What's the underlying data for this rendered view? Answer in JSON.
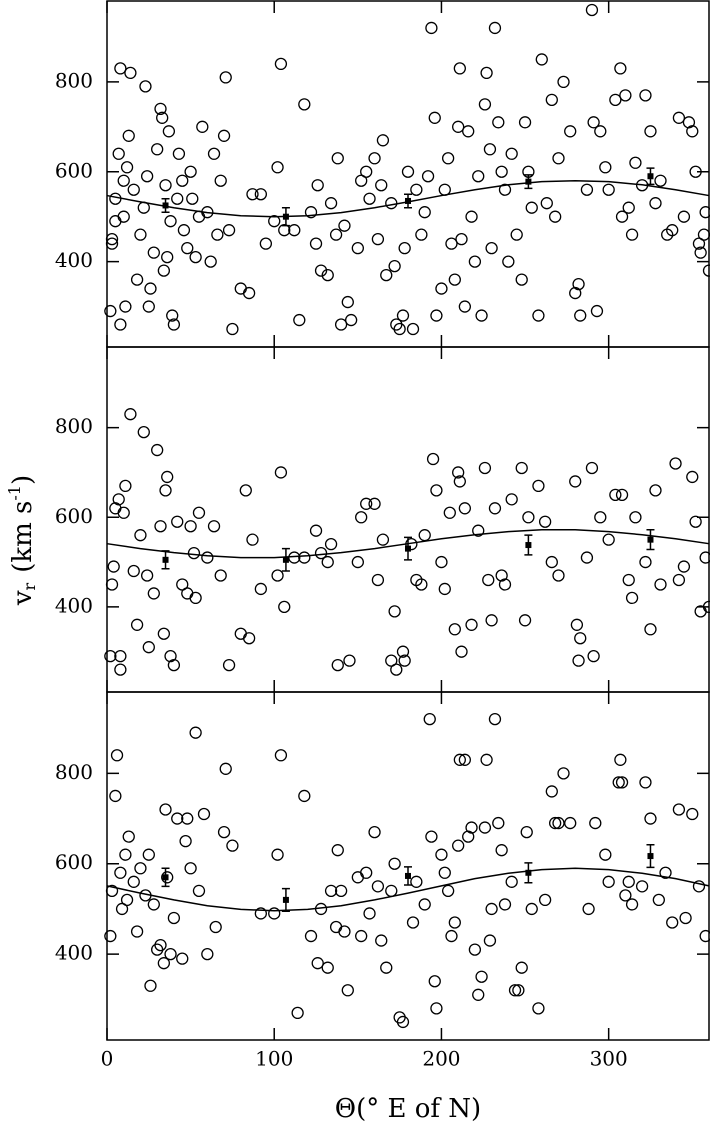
{
  "chart_data": [
    {
      "type": "scatter",
      "xlim": [
        0,
        360
      ],
      "xticks": [
        0,
        100,
        200,
        300
      ],
      "ylim": [
        210,
        980
      ],
      "yticks": [
        400,
        600,
        800
      ],
      "points": {
        "x": [
          2,
          3,
          3,
          5,
          5,
          7,
          8,
          8,
          10,
          10,
          11,
          12,
          13,
          14,
          16,
          18,
          20,
          22,
          23,
          24,
          25,
          26,
          28,
          30,
          32,
          33,
          34,
          35,
          36,
          37,
          38,
          39,
          40,
          42,
          43,
          45,
          46,
          48,
          50,
          51,
          53,
          55,
          57,
          60,
          62,
          64,
          66,
          68,
          70,
          71,
          73,
          75,
          80,
          85,
          87,
          92,
          95,
          100,
          102,
          104,
          106,
          112,
          115,
          118,
          122,
          125,
          126,
          128,
          132,
          134,
          137,
          138,
          140,
          142,
          144,
          146,
          150,
          152,
          155,
          157,
          160,
          162,
          164,
          165,
          167,
          170,
          172,
          173,
          175,
          177,
          178,
          180,
          183,
          185,
          188,
          190,
          192,
          194,
          196,
          197,
          200,
          202,
          204,
          206,
          208,
          210,
          211,
          212,
          214,
          216,
          218,
          220,
          222,
          224,
          226,
          227,
          229,
          230,
          232,
          234,
          236,
          238,
          240,
          242,
          245,
          248,
          250,
          252,
          254,
          258,
          260,
          263,
          266,
          268,
          270,
          273,
          277,
          280,
          282,
          283,
          287,
          290,
          291,
          293,
          295,
          298,
          300,
          304,
          307,
          308,
          310,
          312,
          314,
          316,
          320,
          322,
          325,
          328,
          331,
          335,
          338,
          342,
          345,
          348,
          350,
          352,
          354,
          355,
          357,
          358,
          360
        ],
        "y": [
          290,
          440,
          450,
          490,
          540,
          640,
          260,
          830,
          500,
          580,
          300,
          610,
          680,
          820,
          560,
          360,
          460,
          520,
          790,
          590,
          300,
          340,
          420,
          650,
          740,
          720,
          380,
          570,
          410,
          690,
          490,
          280,
          260,
          540,
          640,
          580,
          470,
          430,
          600,
          540,
          410,
          500,
          700,
          510,
          400,
          640,
          460,
          580,
          680,
          810,
          470,
          250,
          340,
          330,
          550,
          550,
          440,
          490,
          610,
          840,
          470,
          470,
          270,
          750,
          510,
          440,
          570,
          380,
          370,
          530,
          460,
          630,
          260,
          480,
          310,
          270,
          430,
          580,
          600,
          540,
          630,
          450,
          570,
          670,
          370,
          530,
          390,
          260,
          250,
          280,
          430,
          600,
          250,
          560,
          460,
          510,
          590,
          920,
          720,
          280,
          340,
          560,
          630,
          440,
          360,
          700,
          830,
          450,
          300,
          690,
          500,
          400,
          590,
          280,
          750,
          820,
          650,
          430,
          920,
          710,
          600,
          560,
          400,
          640,
          460,
          360,
          710,
          600,
          520,
          280,
          850,
          530,
          760,
          500,
          630,
          800,
          690,
          330,
          350,
          280,
          560,
          960,
          710,
          290,
          690,
          610,
          560,
          760,
          830,
          500,
          770,
          520,
          460,
          620,
          570,
          770,
          690,
          530,
          580,
          460,
          470,
          720,
          500,
          710,
          690,
          600,
          440,
          420,
          460,
          510,
          380
        ]
      },
      "binned": {
        "x": [
          35,
          107,
          180,
          252,
          325
        ],
        "y": [
          525,
          500,
          535,
          578,
          590
        ],
        "err": [
          15,
          20,
          15,
          15,
          18
        ]
      },
      "fit": {
        "x": [
          0,
          20,
          40,
          60,
          80,
          100,
          120,
          140,
          160,
          180,
          200,
          220,
          240,
          260,
          280,
          300,
          320,
          340,
          360
        ],
        "y": [
          547,
          533,
          520,
          509,
          502,
          500,
          502,
          509,
          520,
          533,
          547,
          560,
          571,
          578,
          580,
          578,
          571,
          560,
          547
        ]
      }
    },
    {
      "type": "scatter",
      "xlim": [
        0,
        360
      ],
      "xticks": [
        0,
        100,
        200,
        300
      ],
      "ylim": [
        210,
        980
      ],
      "yticks": [
        400,
        600,
        800
      ],
      "y_label": {
        "symbol": "v",
        "subscript": "r",
        "unit": "(km s",
        "superscript": "-1",
        "close": ")"
      },
      "points": {
        "x": [
          2,
          3,
          4,
          5,
          7,
          8,
          8,
          10,
          11,
          14,
          16,
          18,
          20,
          22,
          24,
          25,
          28,
          30,
          32,
          34,
          35,
          36,
          38,
          40,
          42,
          45,
          48,
          50,
          52,
          53,
          55,
          60,
          64,
          68,
          73,
          80,
          83,
          85,
          87,
          92,
          102,
          104,
          106,
          112,
          118,
          125,
          128,
          132,
          134,
          138,
          145,
          150,
          152,
          155,
          160,
          162,
          165,
          170,
          172,
          173,
          177,
          178,
          182,
          185,
          188,
          190,
          195,
          197,
          200,
          202,
          205,
          208,
          210,
          211,
          212,
          214,
          218,
          222,
          226,
          228,
          230,
          232,
          236,
          238,
          242,
          248,
          250,
          252,
          258,
          262,
          266,
          270,
          280,
          281,
          282,
          283,
          287,
          290,
          291,
          295,
          300,
          304,
          308,
          312,
          314,
          316,
          322,
          325,
          328,
          331,
          340,
          342,
          345,
          350,
          352,
          355,
          358,
          360
        ],
        "y": [
          290,
          450,
          490,
          620,
          640,
          260,
          290,
          610,
          670,
          830,
          480,
          360,
          560,
          790,
          470,
          310,
          430,
          750,
          580,
          340,
          660,
          690,
          290,
          270,
          590,
          450,
          430,
          580,
          520,
          420,
          610,
          510,
          580,
          470,
          270,
          340,
          660,
          330,
          550,
          440,
          470,
          700,
          400,
          510,
          510,
          570,
          520,
          500,
          540,
          270,
          280,
          500,
          600,
          630,
          630,
          460,
          550,
          280,
          390,
          260,
          300,
          280,
          540,
          460,
          450,
          560,
          730,
          660,
          500,
          440,
          610,
          350,
          700,
          680,
          300,
          620,
          360,
          570,
          710,
          460,
          370,
          620,
          470,
          450,
          640,
          710,
          370,
          600,
          670,
          590,
          500,
          470,
          680,
          360,
          280,
          330,
          510,
          710,
          290,
          600,
          550,
          650,
          650,
          460,
          420,
          600,
          500,
          350,
          660,
          450,
          720,
          460,
          490,
          690,
          590,
          390,
          510,
          400
        ]
      },
      "binned": {
        "x": [
          35,
          107,
          180,
          252,
          325
        ],
        "y": [
          505,
          505,
          530,
          538,
          550
        ],
        "err": [
          20,
          25,
          25,
          22,
          22
        ]
      },
      "fit": {
        "x": [
          0,
          20,
          40,
          60,
          80,
          100,
          120,
          140,
          160,
          180,
          200,
          220,
          240,
          260,
          280,
          300,
          320,
          340,
          360
        ],
        "y": [
          541,
          530,
          521,
          514,
          510,
          510,
          514,
          521,
          530,
          541,
          552,
          561,
          568,
          572,
          572,
          568,
          561,
          552,
          541
        ]
      }
    },
    {
      "type": "scatter",
      "xlim": [
        0,
        360
      ],
      "xticks": [
        0,
        100,
        200,
        300
      ],
      "ylim": [
        210,
        980
      ],
      "yticks": [
        400,
        600,
        800
      ],
      "x_label": "Θ(° E of N)",
      "points": {
        "x": [
          2,
          3,
          5,
          6,
          8,
          9,
          11,
          12,
          13,
          16,
          18,
          20,
          23,
          25,
          26,
          28,
          30,
          32,
          34,
          35,
          36,
          38,
          40,
          42,
          45,
          47,
          48,
          50,
          53,
          55,
          58,
          60,
          65,
          70,
          71,
          75,
          92,
          100,
          102,
          104,
          114,
          118,
          122,
          126,
          128,
          132,
          134,
          137,
          138,
          140,
          142,
          144,
          150,
          152,
          155,
          157,
          160,
          162,
          164,
          167,
          170,
          172,
          175,
          177,
          183,
          185,
          190,
          193,
          194,
          196,
          197,
          200,
          202,
          204,
          206,
          208,
          210,
          211,
          214,
          216,
          218,
          220,
          222,
          224,
          226,
          227,
          229,
          230,
          232,
          234,
          236,
          238,
          242,
          244,
          246,
          248,
          251,
          254,
          258,
          262,
          266,
          268,
          270,
          273,
          277,
          288,
          292,
          298,
          300,
          306,
          307,
          308,
          310,
          312,
          314,
          320,
          322,
          325,
          330,
          334,
          338,
          342,
          346,
          350,
          354,
          358
        ],
        "y": [
          440,
          540,
          750,
          840,
          580,
          500,
          620,
          520,
          660,
          560,
          450,
          590,
          530,
          620,
          330,
          510,
          410,
          420,
          380,
          720,
          570,
          400,
          480,
          700,
          390,
          650,
          700,
          590,
          890,
          540,
          710,
          400,
          460,
          670,
          810,
          640,
          490,
          490,
          620,
          840,
          270,
          750,
          440,
          380,
          500,
          370,
          540,
          460,
          630,
          540,
          450,
          320,
          570,
          440,
          580,
          490,
          670,
          550,
          430,
          370,
          540,
          600,
          260,
          250,
          470,
          560,
          510,
          920,
          660,
          340,
          280,
          620,
          580,
          540,
          440,
          470,
          640,
          830,
          830,
          660,
          680,
          410,
          310,
          350,
          680,
          830,
          430,
          500,
          920,
          690,
          630,
          510,
          560,
          320,
          320,
          370,
          670,
          500,
          280,
          520,
          760,
          690,
          690,
          800,
          690,
          500,
          690,
          620,
          560,
          780,
          830,
          780,
          530,
          560,
          510,
          550,
          780,
          700,
          520,
          580,
          470,
          720,
          480,
          710,
          550,
          440
        ]
      },
      "binned": {
        "x": [
          35,
          107,
          180,
          252,
          325
        ],
        "y": [
          570,
          520,
          573,
          580,
          617
        ],
        "err": [
          20,
          25,
          20,
          22,
          25
        ]
      },
      "fit": {
        "x": [
          0,
          20,
          40,
          60,
          80,
          100,
          120,
          140,
          160,
          180,
          200,
          220,
          240,
          260,
          280,
          300,
          320,
          340,
          360
        ],
        "y": [
          551,
          535,
          520,
          507,
          499,
          496,
          499,
          507,
          520,
          535,
          551,
          567,
          579,
          587,
          590,
          587,
          579,
          567,
          551
        ]
      }
    }
  ]
}
